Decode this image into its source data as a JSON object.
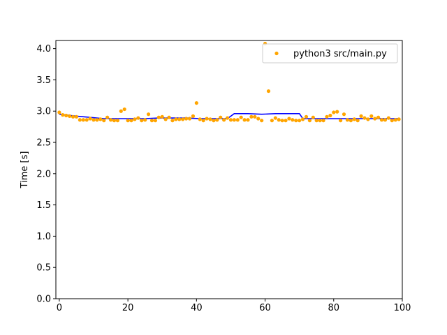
{
  "chart_data": {
    "type": "scatter",
    "title": "",
    "xlabel": "",
    "ylabel": "Time [s]",
    "xlim": [
      -1,
      100
    ],
    "ylim": [
      0.0,
      4.13
    ],
    "xticks": [
      0,
      20,
      40,
      60,
      80,
      100
    ],
    "xtick_labels": [
      "0",
      "20",
      "40",
      "60",
      "80",
      "100"
    ],
    "yticks": [
      0.0,
      0.5,
      1.0,
      1.5,
      2.0,
      2.5,
      3.0,
      3.5,
      4.0
    ],
    "ytick_labels": [
      "0.0",
      "0.5",
      "1.0",
      "1.5",
      "2.0",
      "2.5",
      "3.0",
      "3.5",
      "4.0"
    ],
    "grid": false,
    "legend_position": "top-right",
    "series": [
      {
        "name": "python3 src/main.py",
        "kind": "scatter",
        "color": "#ffa500",
        "x": [
          0,
          1,
          2,
          3,
          4,
          5,
          6,
          7,
          8,
          9,
          10,
          11,
          12,
          13,
          14,
          15,
          16,
          17,
          18,
          19,
          20,
          21,
          22,
          23,
          24,
          25,
          26,
          27,
          28,
          29,
          30,
          31,
          32,
          33,
          34,
          35,
          36,
          37,
          38,
          39,
          40,
          41,
          42,
          43,
          44,
          45,
          46,
          47,
          48,
          49,
          50,
          51,
          52,
          53,
          54,
          55,
          56,
          57,
          58,
          59,
          60,
          61,
          62,
          63,
          64,
          65,
          66,
          67,
          68,
          69,
          70,
          71,
          72,
          73,
          74,
          75,
          76,
          77,
          78,
          79,
          80,
          81,
          82,
          83,
          84,
          85,
          86,
          87,
          88,
          89,
          90,
          91,
          92,
          93,
          94,
          95,
          96,
          97,
          98,
          99
        ],
        "y": [
          2.98,
          2.94,
          2.93,
          2.92,
          2.91,
          2.91,
          2.86,
          2.86,
          2.86,
          2.88,
          2.86,
          2.86,
          2.87,
          2.85,
          2.9,
          2.86,
          2.85,
          2.85,
          3.0,
          3.03,
          2.85,
          2.85,
          2.87,
          2.89,
          2.85,
          2.86,
          2.95,
          2.85,
          2.85,
          2.9,
          2.91,
          2.87,
          2.9,
          2.85,
          2.87,
          2.87,
          2.87,
          2.88,
          2.88,
          2.92,
          3.13,
          2.87,
          2.85,
          2.88,
          2.87,
          2.85,
          2.86,
          2.9,
          2.86,
          2.89,
          2.86,
          2.86,
          2.86,
          2.9,
          2.86,
          2.86,
          2.91,
          2.91,
          2.88,
          2.85,
          4.08,
          3.32,
          2.85,
          2.89,
          2.86,
          2.85,
          2.85,
          2.88,
          2.86,
          2.85,
          2.85,
          2.87,
          2.91,
          2.85,
          2.9,
          2.85,
          2.85,
          2.85,
          2.91,
          2.93,
          2.98,
          2.99,
          2.85,
          2.95,
          2.86,
          2.85,
          2.87,
          2.85,
          2.92,
          2.89,
          2.87,
          2.92,
          2.88,
          2.9,
          2.86,
          2.86,
          2.89,
          2.85,
          2.86,
          2.87
        ]
      },
      {
        "kind": "line",
        "color": "#0000ff",
        "x": [
          0,
          5,
          9,
          13,
          17,
          21,
          25,
          29,
          33,
          37,
          41,
          45,
          49,
          51,
          55,
          59,
          63,
          67,
          70,
          71,
          75,
          79,
          83,
          87,
          91,
          95,
          99
        ],
        "y": [
          2.95,
          2.92,
          2.9,
          2.88,
          2.88,
          2.88,
          2.88,
          2.89,
          2.89,
          2.89,
          2.88,
          2.88,
          2.88,
          2.96,
          2.96,
          2.95,
          2.96,
          2.96,
          2.96,
          2.88,
          2.88,
          2.88,
          2.88,
          2.88,
          2.88,
          2.88,
          2.88
        ]
      }
    ]
  }
}
